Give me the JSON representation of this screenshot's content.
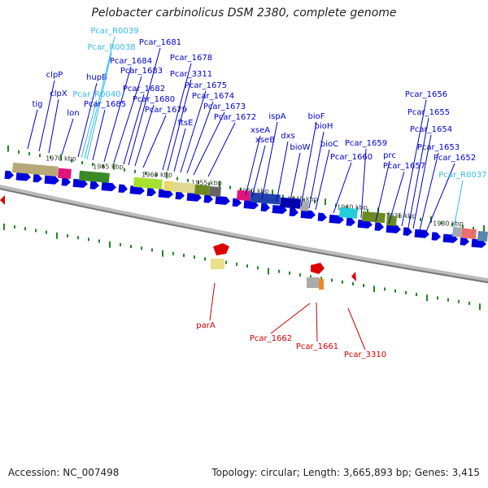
{
  "title": "Pelobacter carbinolicus DSM 2380, complete genome",
  "footer": {
    "accession": "Accession: NC_007498",
    "summary": "Topology: circular; Length: 3,665,893 bp; Genes: 3,415"
  },
  "colors": {
    "gene_label": "#0000cc",
    "rna_label": "#33bbee",
    "minus_label": "#cc0000",
    "backbone": "#888888",
    "tick": "#228822",
    "arrow": "#0000dd"
  },
  "kbp_labels": [
    "1970 kbp",
    "1965 kbp",
    "1960 kbp",
    "1955 kbp",
    "1950 kbp",
    "1945 kbp",
    "1940 kbp",
    "1935 kbp",
    "1930 kbp"
  ],
  "plus_labels": [
    {
      "text": "tig",
      "kind": "gene"
    },
    {
      "text": "clpP",
      "kind": "gene"
    },
    {
      "text": "clpX",
      "kind": "gene"
    },
    {
      "text": "lon",
      "kind": "gene"
    },
    {
      "text": "hupB",
      "kind": "gene"
    },
    {
      "text": "Pcar_R0040",
      "kind": "rna"
    },
    {
      "text": "Pcar_R0039",
      "kind": "rna"
    },
    {
      "text": "Pcar_R0038",
      "kind": "rna"
    },
    {
      "text": "Pcar_1685",
      "kind": "gene"
    },
    {
      "text": "Pcar_1684",
      "kind": "gene"
    },
    {
      "text": "Pcar_1683",
      "kind": "gene"
    },
    {
      "text": "Pcar_1682",
      "kind": "gene"
    },
    {
      "text": "Pcar_1681",
      "kind": "gene"
    },
    {
      "text": "Pcar_1680",
      "kind": "gene"
    },
    {
      "text": "Pcar_1679",
      "kind": "gene"
    },
    {
      "text": "Pcar_1678",
      "kind": "gene"
    },
    {
      "text": "Pcar_3311",
      "kind": "gene"
    },
    {
      "text": "ftsE",
      "kind": "gene"
    },
    {
      "text": "Pcar_1675",
      "kind": "gene"
    },
    {
      "text": "Pcar_1674",
      "kind": "gene"
    },
    {
      "text": "Pcar_1673",
      "kind": "gene"
    },
    {
      "text": "Pcar_1672",
      "kind": "gene"
    },
    {
      "text": "xseA",
      "kind": "gene"
    },
    {
      "text": "xseB",
      "kind": "gene"
    },
    {
      "text": "ispA",
      "kind": "gene"
    },
    {
      "text": "dxs",
      "kind": "gene"
    },
    {
      "text": "bioW",
      "kind": "gene"
    },
    {
      "text": "bioF",
      "kind": "gene"
    },
    {
      "text": "bioH",
      "kind": "gene"
    },
    {
      "text": "bioC",
      "kind": "gene"
    },
    {
      "text": "Pcar_1660",
      "kind": "gene"
    },
    {
      "text": "Pcar_1659",
      "kind": "gene"
    },
    {
      "text": "prc",
      "kind": "gene"
    },
    {
      "text": "Pcar_1657",
      "kind": "gene"
    },
    {
      "text": "Pcar_1656",
      "kind": "gene"
    },
    {
      "text": "Pcar_1655",
      "kind": "gene"
    },
    {
      "text": "Pcar_1654",
      "kind": "gene"
    },
    {
      "text": "Pcar_1653",
      "kind": "gene"
    },
    {
      "text": "Pcar_1652",
      "kind": "gene"
    },
    {
      "text": "Pcar_R0037",
      "kind": "rna"
    }
  ],
  "minus_labels": [
    {
      "text": "parA"
    },
    {
      "text": "Pcar_1662"
    },
    {
      "text": "Pcar_1661"
    },
    {
      "text": "Pcar_3310"
    }
  ]
}
